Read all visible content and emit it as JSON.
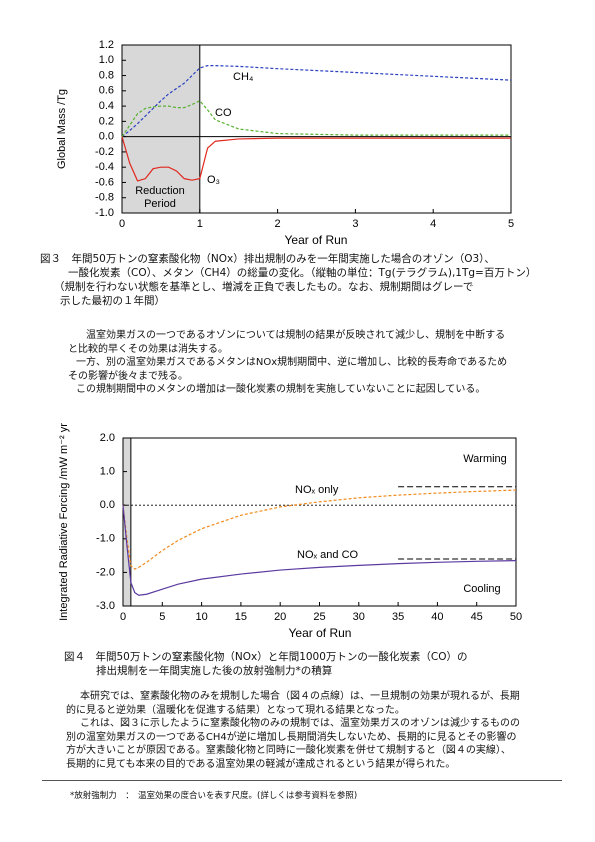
{
  "chart_data": [
    {
      "type": "line",
      "ylabel": "Global Mass /Tg",
      "xlabel": "Year of Run",
      "xlim": [
        0,
        5
      ],
      "xticks": [
        0,
        1,
        2,
        3,
        4,
        5
      ],
      "ylim": [
        -1.0,
        1.2
      ],
      "yticks": [
        {
          "value": -1.0,
          "label": "-1.0"
        },
        -0.8,
        -0.6,
        -0.4,
        -0.2,
        {
          "value": 0,
          "label": "0.0"
        },
        0.2,
        0.4,
        0.6,
        0.8,
        {
          "value": 1.0,
          "label": "1.0"
        },
        1.2
      ],
      "shade": [
        0,
        1
      ],
      "shade_label": [
        "Reduction",
        "Period"
      ],
      "zero_line": "solid",
      "series": [
        {
          "name": "CH₄",
          "color": "#2a3fbf",
          "dash": true,
          "x": [
            0,
            0.1,
            0.2,
            0.3,
            0.4,
            0.5,
            0.6,
            0.7,
            0.8,
            0.9,
            1.0,
            1.1,
            1.2,
            1.5,
            2,
            3,
            4,
            5
          ],
          "values": [
            0,
            0.08,
            0.17,
            0.27,
            0.37,
            0.47,
            0.56,
            0.63,
            0.7,
            0.8,
            0.9,
            0.93,
            0.93,
            0.92,
            0.89,
            0.84,
            0.79,
            0.74
          ]
        },
        {
          "name": "CO",
          "color": "#58b030",
          "dash": true,
          "x": [
            0,
            0.1,
            0.2,
            0.3,
            0.4,
            0.5,
            0.6,
            0.7,
            0.8,
            0.9,
            1.0,
            1.1,
            1.2,
            1.5,
            2,
            3,
            4,
            5
          ],
          "values": [
            0,
            0.15,
            0.3,
            0.37,
            0.39,
            0.4,
            0.4,
            0.38,
            0.38,
            0.42,
            0.47,
            0.35,
            0.22,
            0.1,
            0.04,
            0.02,
            0.02,
            0.02
          ]
        },
        {
          "name": "O₃",
          "color": "#e0281e",
          "dash": false,
          "x": [
            0,
            0.1,
            0.2,
            0.3,
            0.4,
            0.5,
            0.6,
            0.7,
            0.8,
            0.9,
            1.0,
            1.1,
            1.2,
            1.5,
            2,
            3,
            4,
            5
          ],
          "values": [
            0,
            -0.35,
            -0.58,
            -0.55,
            -0.42,
            -0.4,
            -0.4,
            -0.45,
            -0.55,
            -0.57,
            -0.55,
            -0.15,
            -0.06,
            -0.03,
            -0.02,
            -0.02,
            -0.02,
            -0.02
          ]
        }
      ]
    },
    {
      "type": "line",
      "ylabel": "Integrated Radiative Forcing /mW m⁻² yr",
      "xlabel": "Year of Run",
      "xlim": [
        0,
        50
      ],
      "xticks": [
        0,
        5,
        10,
        15,
        20,
        25,
        30,
        35,
        40,
        45,
        50
      ],
      "ylim": [
        -3.0,
        2.0
      ],
      "yticks": [
        {
          "value": -3.0,
          "label": "-3.0"
        },
        {
          "value": -2.0,
          "label": "-2.0"
        },
        {
          "value": -1.0,
          "label": "-1.0"
        },
        {
          "value": 0,
          "label": "0.0"
        },
        {
          "value": 1.0,
          "label": "1.0"
        },
        {
          "value": 2.0,
          "label": "2.0"
        }
      ],
      "shade": [
        0,
        1
      ],
      "zero_line": "dotted",
      "annotations": [
        "Warming",
        "Cooling"
      ],
      "reference_lines": [
        {
          "y": 0.55,
          "x": [
            35,
            50
          ]
        },
        {
          "y": -1.6,
          "x": [
            35,
            50
          ]
        }
      ],
      "series": [
        {
          "name": "NOₓ only",
          "color": "#f08a1c",
          "dash": true,
          "x": [
            0,
            0.5,
            1,
            1.5,
            2,
            3,
            5,
            7,
            10,
            15,
            20,
            25,
            30,
            35,
            40,
            45,
            50
          ],
          "values": [
            0,
            -1.0,
            -1.8,
            -1.9,
            -1.85,
            -1.7,
            -1.35,
            -1.05,
            -0.7,
            -0.3,
            -0.05,
            0.1,
            0.22,
            0.3,
            0.36,
            0.41,
            0.45
          ]
        },
        {
          "name": "NOₓ and CO",
          "color": "#5b3aa0",
          "dash": false,
          "x": [
            0,
            0.5,
            1,
            1.5,
            2,
            3,
            5,
            7,
            10,
            15,
            20,
            25,
            30,
            35,
            40,
            45,
            50
          ],
          "values": [
            0,
            -1.2,
            -2.3,
            -2.6,
            -2.68,
            -2.65,
            -2.5,
            -2.35,
            -2.2,
            -2.05,
            -1.93,
            -1.85,
            -1.79,
            -1.74,
            -1.7,
            -1.67,
            -1.65
          ]
        }
      ]
    }
  ],
  "figure3_caption": [
    "図３　年間50万トンの窒素酸化物（NOx）排出規制のみを一年間実施した場合のオゾン（O3）、",
    "一酸化炭素（CO）、メタン（CH4）の総量の変化。（縦軸の単位：Tg(テラグラム),1Tg=百万トン）",
    "（規制を行わない状態を基準とし、増減を正負で表したもの。なお、規制期間はグレーで",
    "示した最初の１年間）"
  ],
  "paragraph1": [
    "温室効果ガスの一つであるオゾンについては規制の結果が反映されて減少し、規制を中断する",
    "と比較的早くその効果は消失する。",
    "一方、別の温室効果ガスであるメタンはNOx規制期間中、逆に増加し、比較的長寿命であるため",
    "その影響が後々まで残る。",
    "この規制期間中のメタンの増加は一酸化炭素の規制を実施していないことに起因している。"
  ],
  "figure4_caption": [
    "図４　年間50万トンの窒素酸化物（NOx）と年間1000万トンの一酸化炭素（CO）の",
    "排出規制を一年間実施した後の放射強制力*の積算"
  ],
  "paragraph2": [
    "本研究では、窒素酸化物のみを規制した場合（図４の点線）は、一旦規制の効果が現れるが、長期",
    "的に見ると逆効果（温暖化を促進する結果）となって現れる結果となった。",
    "これは、図３に示したように窒素酸化物のみの規制では、温室効果ガスのオゾンは減少するものの",
    "別の温室効果ガスの一つであるCH4が逆に増加し長期間消失しないため、長期的に見るとその影響の",
    "方が大きいことが原因である。窒素酸化物と同時に一酸化炭素を併せて規制すると（図４の実線）、",
    "長期的に見ても本来の目的である温室効果の軽減が達成されるという結果が得られた。"
  ],
  "footnote": "*放射強制力　：　温室効果の度合いを表す尺度。(詳しくは参考資料を参照)"
}
